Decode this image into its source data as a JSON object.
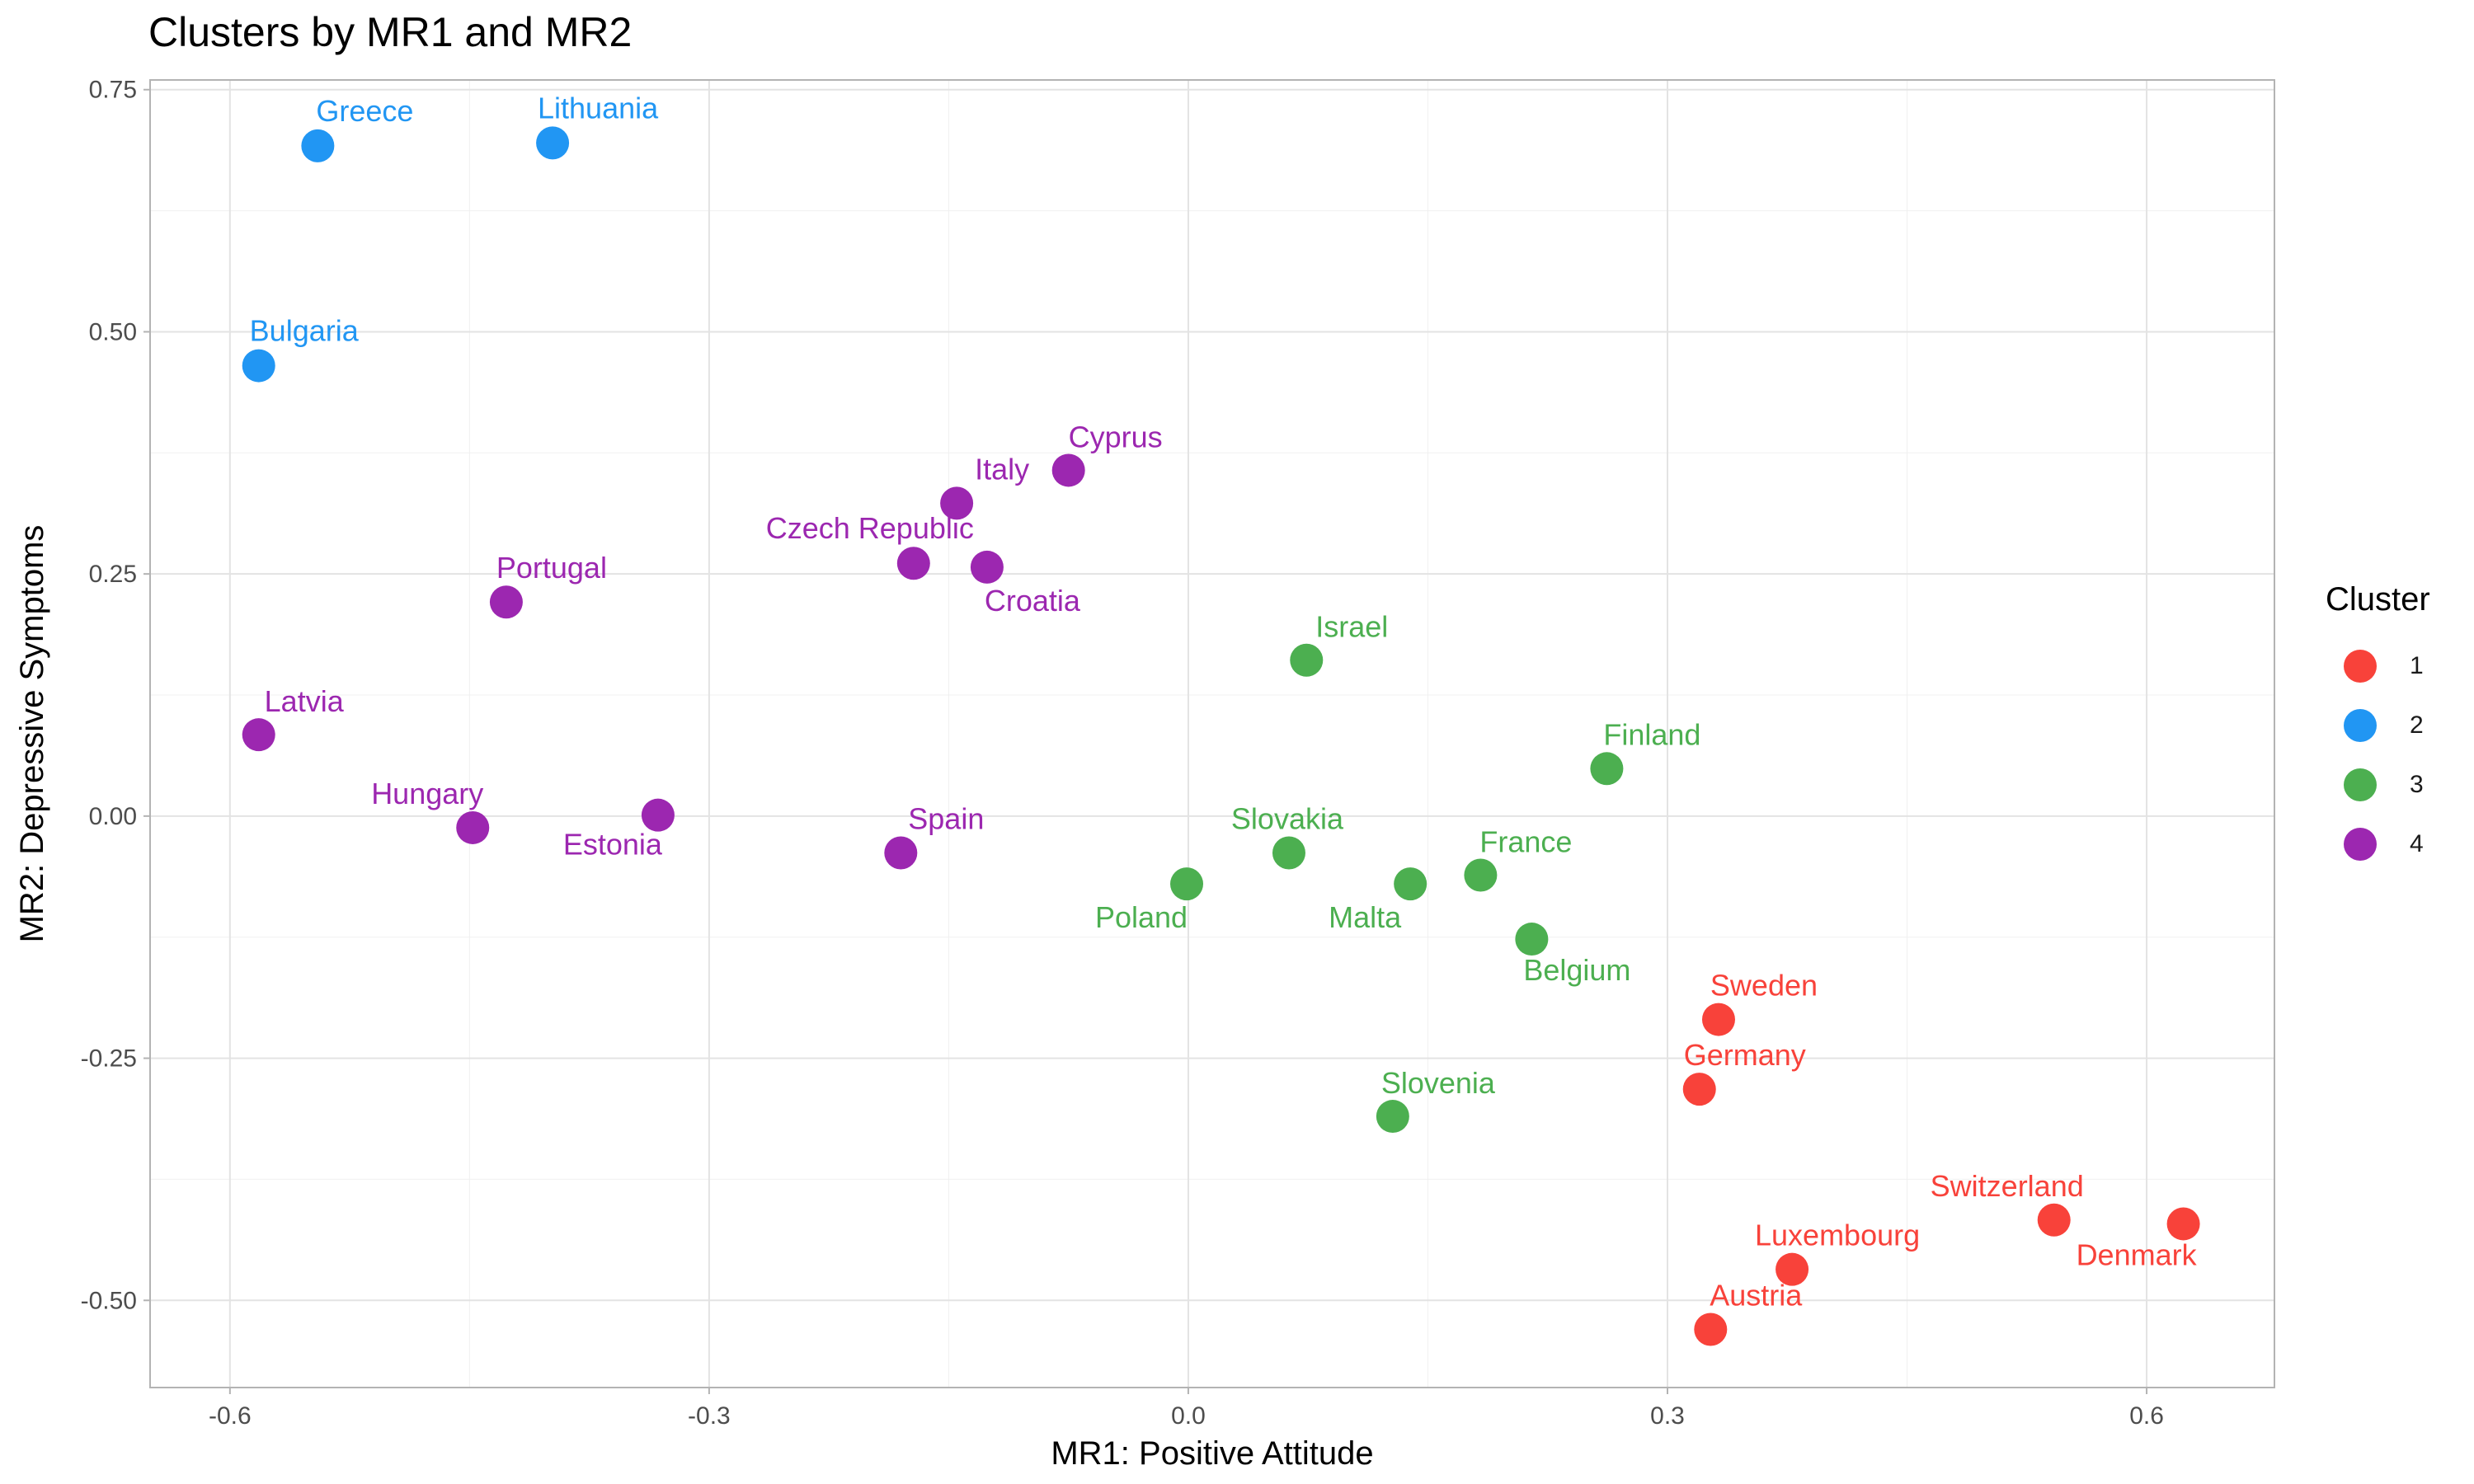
{
  "chart_data": {
    "type": "scatter",
    "title": "Clusters by MR1 and MR2",
    "xlabel": "MR1: Positive Attitude",
    "ylabel": "MR2: Depressive Symptoms",
    "xlim": [
      -0.65,
      0.68
    ],
    "ylim": [
      -0.59,
      0.76
    ],
    "x_ticks": [
      -0.6,
      -0.3,
      0.0,
      0.3,
      0.6
    ],
    "x_tick_labels": [
      "-0.6",
      "-0.3",
      "0.0",
      "0.3",
      "0.6"
    ],
    "y_ticks": [
      -0.5,
      -0.25,
      0.0,
      0.25,
      0.5,
      0.75
    ],
    "y_tick_labels": [
      "-0.50",
      "-0.25",
      "0.00",
      "0.25",
      "0.50",
      "0.75"
    ],
    "grid": true,
    "legend": {
      "title": "Cluster",
      "position": "right",
      "entries": [
        {
          "label": "1",
          "color": "#F8423A"
        },
        {
          "label": "2",
          "color": "#2196F3"
        },
        {
          "label": "3",
          "color": "#4CAF50"
        },
        {
          "label": "4",
          "color": "#9C27B0"
        }
      ]
    },
    "points": [
      {
        "label": "Greece",
        "x": -0.545,
        "y": 0.692,
        "cluster": "2"
      },
      {
        "label": "Lithuania",
        "x": -0.398,
        "y": 0.695,
        "cluster": "2"
      },
      {
        "label": "Bulgaria",
        "x": -0.582,
        "y": 0.465,
        "cluster": "2"
      },
      {
        "label": "Cyprus",
        "x": -0.075,
        "y": 0.357,
        "cluster": "4"
      },
      {
        "label": "Italy",
        "x": -0.145,
        "y": 0.323,
        "cluster": "4"
      },
      {
        "label": "Czech Republic",
        "x": -0.172,
        "y": 0.261,
        "cluster": "4"
      },
      {
        "label": "Croatia",
        "x": -0.126,
        "y": 0.257,
        "cluster": "4"
      },
      {
        "label": "Portugal",
        "x": -0.427,
        "y": 0.221,
        "cluster": "4"
      },
      {
        "label": "Latvia",
        "x": -0.582,
        "y": 0.084,
        "cluster": "4"
      },
      {
        "label": "Hungary",
        "x": -0.448,
        "y": -0.012,
        "cluster": "4"
      },
      {
        "label": "Estonia",
        "x": -0.332,
        "y": 0.001,
        "cluster": "4"
      },
      {
        "label": "Spain",
        "x": -0.18,
        "y": -0.038,
        "cluster": "4"
      },
      {
        "label": "Israel",
        "x": 0.074,
        "y": 0.161,
        "cluster": "3"
      },
      {
        "label": "Finland",
        "x": 0.262,
        "y": 0.049,
        "cluster": "3"
      },
      {
        "label": "Slovakia",
        "x": 0.063,
        "y": -0.038,
        "cluster": "3"
      },
      {
        "label": "Poland",
        "x": -0.001,
        "y": -0.07,
        "cluster": "3"
      },
      {
        "label": "Malta",
        "x": 0.139,
        "y": -0.07,
        "cluster": "3"
      },
      {
        "label": "France",
        "x": 0.183,
        "y": -0.061,
        "cluster": "3"
      },
      {
        "label": "Belgium",
        "x": 0.215,
        "y": -0.127,
        "cluster": "3"
      },
      {
        "label": "Slovenia",
        "x": 0.128,
        "y": -0.31,
        "cluster": "3"
      },
      {
        "label": "Sweden",
        "x": 0.332,
        "y": -0.21,
        "cluster": "1"
      },
      {
        "label": "Germany",
        "x": 0.32,
        "y": -0.282,
        "cluster": "1"
      },
      {
        "label": "Switzerland",
        "x": 0.542,
        "y": -0.417,
        "cluster": "1"
      },
      {
        "label": "Denmark",
        "x": 0.623,
        "y": -0.421,
        "cluster": "1"
      },
      {
        "label": "Luxembourg",
        "x": 0.378,
        "y": -0.468,
        "cluster": "1"
      },
      {
        "label": "Austria",
        "x": 0.327,
        "y": -0.53,
        "cluster": "1"
      }
    ]
  }
}
